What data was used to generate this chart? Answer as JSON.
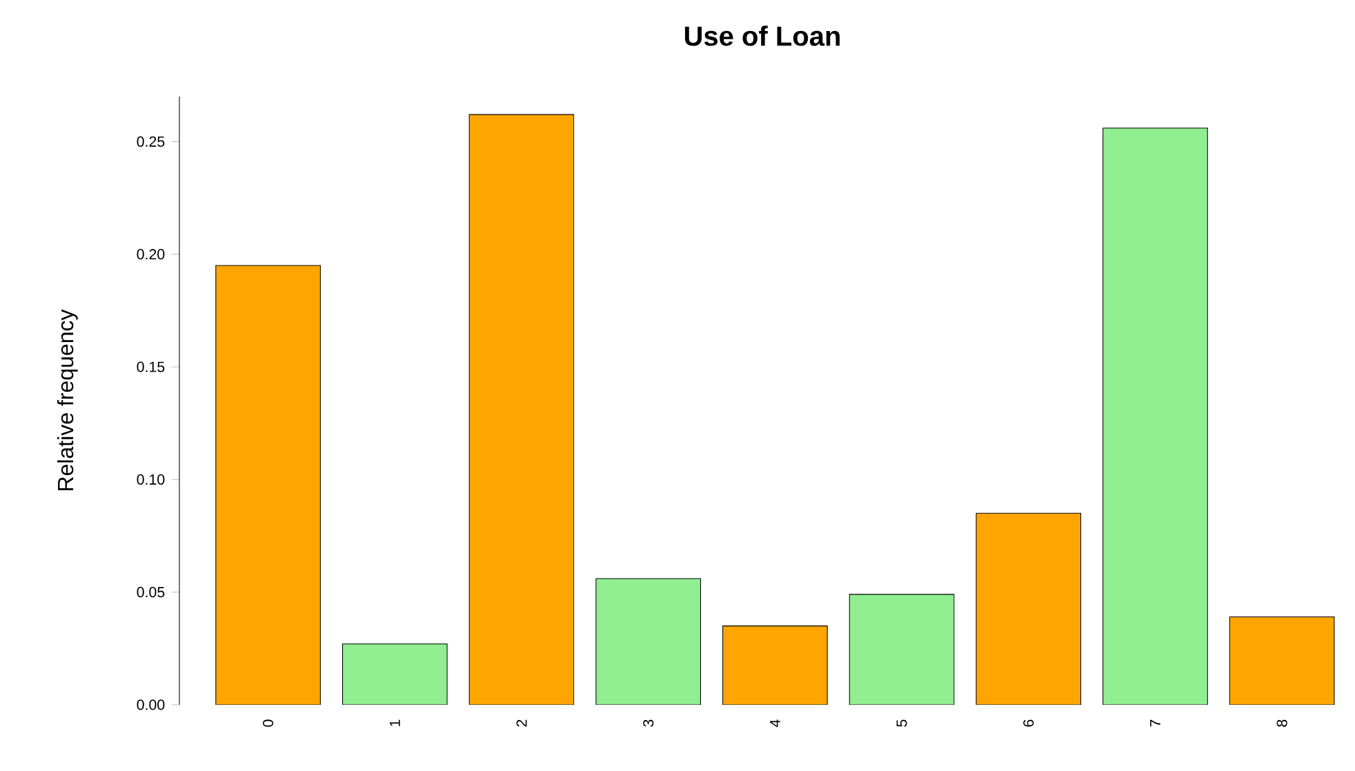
{
  "chart_data": {
    "type": "bar",
    "title": "Use of Loan",
    "ylabel": "Relative frequency",
    "categories": [
      "0",
      "1",
      "2",
      "3",
      "4",
      "5",
      "6",
      "7",
      "8"
    ],
    "values": [
      0.195,
      0.027,
      0.262,
      0.056,
      0.035,
      0.049,
      0.085,
      0.256,
      0.039
    ],
    "colors": [
      "#ffa500",
      "#90ee90",
      "#ffa500",
      "#90ee90",
      "#ffa500",
      "#90ee90",
      "#ffa500",
      "#90ee90",
      "#ffa500"
    ],
    "ylim": [
      0,
      0.27
    ],
    "yticks": [
      {
        "value": 0,
        "label": "0.00"
      },
      0.05,
      {
        "value": 0.1,
        "label": "0.10"
      },
      0.15,
      {
        "value": 0.2,
        "label": "0.20"
      },
      0.25
    ],
    "grid": false
  }
}
